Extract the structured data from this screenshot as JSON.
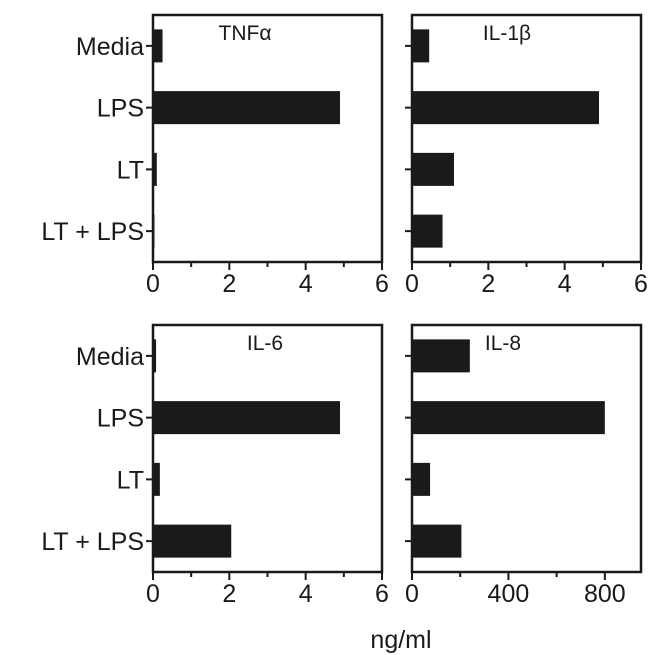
{
  "chart_data": [
    {
      "type": "bar",
      "orientation": "horizontal",
      "title": "TNFα",
      "categories": [
        "Media",
        "LPS",
        "LT",
        "LT + LPS"
      ],
      "values": [
        0.25,
        4.9,
        0.1,
        0.02
      ],
      "xlim": [
        0,
        6
      ],
      "xticks": [
        "0",
        "2",
        "4",
        "6"
      ],
      "minor_ticks": [
        1,
        3,
        5
      ],
      "bar_color": "#1a1a1a"
    },
    {
      "type": "bar",
      "orientation": "horizontal",
      "title": "IL-1β",
      "categories": [
        "Media",
        "LPS",
        "LT",
        "LT + LPS"
      ],
      "values": [
        0.45,
        4.9,
        1.1,
        0.8
      ],
      "xlim": [
        0,
        6
      ],
      "xticks": [
        "0",
        "2",
        "4",
        "6"
      ],
      "minor_ticks": [
        1,
        3,
        5
      ],
      "bar_color": "#1a1a1a"
    },
    {
      "type": "bar",
      "orientation": "horizontal",
      "title": "IL-6",
      "categories": [
        "Media",
        "LPS",
        "LT",
        "LT + LPS"
      ],
      "values": [
        0.08,
        4.9,
        0.18,
        2.05
      ],
      "xlim": [
        0,
        6
      ],
      "xticks": [
        "0",
        "2",
        "4",
        "6"
      ],
      "minor_ticks": [
        1,
        3,
        5
      ],
      "bar_color": "#1a1a1a"
    },
    {
      "type": "bar",
      "orientation": "horizontal",
      "title": "IL-8",
      "categories": [
        "Media",
        "LPS",
        "LT",
        "LT + LPS"
      ],
      "values": [
        240,
        800,
        75,
        205
      ],
      "xlim": [
        0,
        950
      ],
      "xticks": [
        "0",
        "400",
        "800"
      ],
      "minor_ticks": [
        200,
        600
      ],
      "bar_color": "#1a1a1a"
    }
  ],
  "xlabel": "ng/ml"
}
